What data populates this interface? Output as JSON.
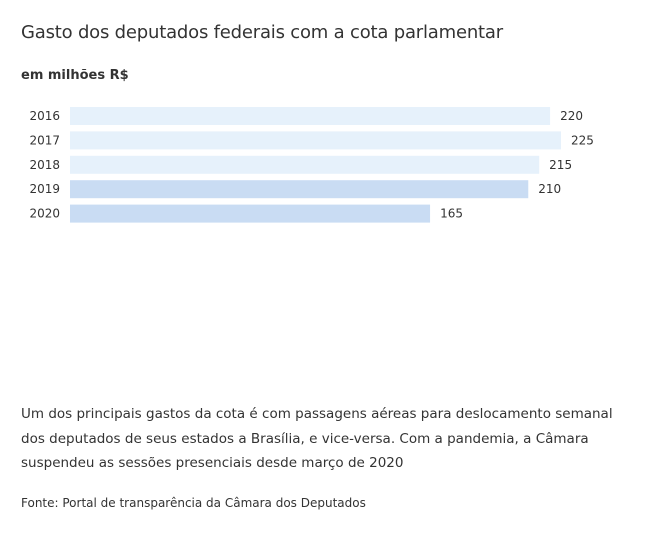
{
  "title": "Gasto dos deputados federais com a cota parlamentar",
  "subtitle": "em milhões R$",
  "caption": "Um dos principais gastos da cota é com passagens aéreas para deslocamento semanal dos deputados de seus estados a Brasília, e vice-versa. Com a pandemia, a Câmara suspendeu as sessões presenciais desde março de 2020",
  "source": "Fonte: Portal de transparência da Câmara dos Deputados",
  "colors": {
    "bar_light": "#e6f1fb",
    "bar_dark": "#c9dcf3",
    "text": "#333333"
  },
  "chart_data": {
    "type": "bar",
    "orientation": "horizontal",
    "categories": [
      "2016",
      "2017",
      "2018",
      "2019",
      "2020"
    ],
    "values": [
      220,
      225,
      215,
      210,
      165
    ],
    "highlighted": [
      false,
      false,
      false,
      true,
      true
    ],
    "xlim": [
      0,
      225
    ],
    "grid": false,
    "legend": "none"
  }
}
